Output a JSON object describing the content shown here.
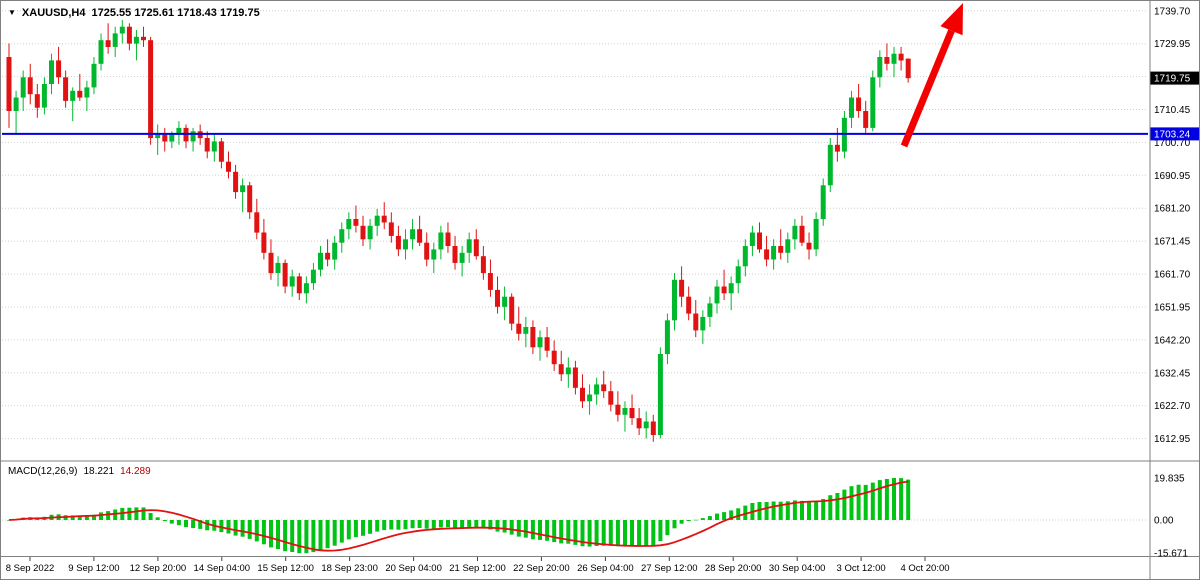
{
  "window": {
    "symbol_label": "XAUUSD,H4",
    "ohlc": "1725.55 1725.61 1718.43 1719.75",
    "dropdown_icon": "▼"
  },
  "colors": {
    "bull": "#00B82E",
    "bear": "#E01212",
    "grid": "#CFCFCF",
    "hline": "#0000E0",
    "arrow": "#F40000",
    "macd_hist": "#00C314",
    "macd_signal": "#E01212",
    "price_tag_bg": "#000000",
    "tag_text": "#FFFFFF",
    "frame": "#808080"
  },
  "price_axis": {
    "labels": [
      "1739.70",
      "1729.95",
      "1710.45",
      "1700.70",
      "1690.95",
      "1681.20",
      "1671.45",
      "1661.70",
      "1651.95",
      "1642.20",
      "1632.45",
      "1622.70",
      "1612.95"
    ],
    "current_price_tag": "1719.75",
    "line_tag": "1703.24"
  },
  "macd_panel": {
    "label": "MACD(12,26,9)",
    "value_main": "18.221",
    "value_signal": "14.289",
    "axis_labels": [
      "19.835",
      "0.00",
      "-15.671"
    ]
  },
  "chart_data": {
    "type": "candlestick",
    "symbol": "XAUUSD",
    "timeframe": "H4",
    "title": "XAUUSD,H4",
    "last_ohlc": {
      "open": 1725.55,
      "high": 1725.61,
      "low": 1718.43,
      "close": 1719.75
    },
    "ylim": [
      1606.5,
      1742.9
    ],
    "y_gridlines": [
      1739.7,
      1729.95,
      1720.2,
      1710.45,
      1700.7,
      1690.95,
      1681.2,
      1671.45,
      1661.7,
      1651.95,
      1642.2,
      1632.45,
      1622.7,
      1612.95
    ],
    "x_labels": [
      "8 Sep 2022",
      "9 Sep 12:00",
      "12 Sep 20:00",
      "14 Sep 04:00",
      "15 Sep 12:00",
      "18 Sep 23:00",
      "20 Sep 04:00",
      "21 Sep 12:00",
      "22 Sep 20:00",
      "26 Sep 04:00",
      "27 Sep 12:00",
      "28 Sep 20:00",
      "30 Sep 04:00",
      "3 Oct 12:00",
      "4 Oct 20:00"
    ],
    "indicators": {
      "horizontal_line": {
        "price": 1703.24
      },
      "macd": {
        "fast": 12,
        "slow": 26,
        "signal": 9,
        "last_main": 18.221,
        "last_signal": 14.289,
        "axis_range": [
          19.835,
          0,
          -15.671
        ]
      }
    },
    "candles": [
      [
        1726,
        1730,
        1705,
        1710
      ],
      [
        1710,
        1716,
        1703,
        1714
      ],
      [
        1714,
        1722,
        1710,
        1720
      ],
      [
        1720,
        1724,
        1712,
        1715
      ],
      [
        1715,
        1718,
        1708,
        1711
      ],
      [
        1711,
        1720,
        1709,
        1718
      ],
      [
        1718,
        1727,
        1715,
        1725
      ],
      [
        1725,
        1729,
        1718,
        1720
      ],
      [
        1720,
        1722,
        1711,
        1713
      ],
      [
        1713,
        1717,
        1707,
        1716
      ],
      [
        1716,
        1721,
        1713,
        1714
      ],
      [
        1714,
        1719,
        1710,
        1717
      ],
      [
        1717,
        1726,
        1715,
        1724
      ],
      [
        1724,
        1733,
        1722,
        1731
      ],
      [
        1731,
        1736,
        1727,
        1729
      ],
      [
        1729,
        1735,
        1726,
        1733
      ],
      [
        1733,
        1737,
        1730,
        1735
      ],
      [
        1735,
        1736,
        1728,
        1730
      ],
      [
        1730,
        1734,
        1725,
        1732
      ],
      [
        1732,
        1735,
        1729,
        1731
      ],
      [
        1731,
        1732,
        1700,
        1702
      ],
      [
        1702,
        1706,
        1697,
        1703
      ],
      [
        1703,
        1705,
        1698,
        1701
      ],
      [
        1701,
        1704,
        1699,
        1703
      ],
      [
        1703,
        1707,
        1700,
        1705
      ],
      [
        1705,
        1706,
        1699,
        1701
      ],
      [
        1701,
        1705,
        1698,
        1704
      ],
      [
        1704,
        1706,
        1700,
        1702
      ],
      [
        1702,
        1704,
        1696,
        1698
      ],
      [
        1698,
        1703,
        1695,
        1701
      ],
      [
        1701,
        1702,
        1693,
        1695
      ],
      [
        1695,
        1698,
        1690,
        1692
      ],
      [
        1692,
        1694,
        1684,
        1686
      ],
      [
        1686,
        1690,
        1680,
        1688
      ],
      [
        1688,
        1689,
        1678,
        1680
      ],
      [
        1680,
        1684,
        1672,
        1674
      ],
      [
        1674,
        1678,
        1666,
        1668
      ],
      [
        1668,
        1672,
        1660,
        1662
      ],
      [
        1662,
        1667,
        1658,
        1665
      ],
      [
        1665,
        1666,
        1656,
        1658
      ],
      [
        1658,
        1663,
        1655,
        1661
      ],
      [
        1661,
        1662,
        1654,
        1656
      ],
      [
        1656,
        1661,
        1653,
        1659
      ],
      [
        1659,
        1665,
        1657,
        1663
      ],
      [
        1663,
        1670,
        1661,
        1668
      ],
      [
        1668,
        1672,
        1664,
        1666
      ],
      [
        1666,
        1673,
        1663,
        1671
      ],
      [
        1671,
        1677,
        1668,
        1675
      ],
      [
        1675,
        1680,
        1672,
        1678
      ],
      [
        1678,
        1682,
        1674,
        1676
      ],
      [
        1676,
        1679,
        1670,
        1672
      ],
      [
        1672,
        1678,
        1669,
        1676
      ],
      [
        1676,
        1681,
        1673,
        1679
      ],
      [
        1679,
        1683,
        1675,
        1677
      ],
      [
        1677,
        1680,
        1671,
        1673
      ],
      [
        1673,
        1676,
        1667,
        1669
      ],
      [
        1669,
        1675,
        1666,
        1672
      ],
      [
        1672,
        1678,
        1669,
        1675
      ],
      [
        1675,
        1679,
        1670,
        1671
      ],
      [
        1671,
        1674,
        1664,
        1666
      ],
      [
        1666,
        1671,
        1662,
        1669
      ],
      [
        1669,
        1676,
        1666,
        1674
      ],
      [
        1674,
        1677,
        1668,
        1670
      ],
      [
        1670,
        1673,
        1663,
        1665
      ],
      [
        1665,
        1670,
        1661,
        1668
      ],
      [
        1668,
        1674,
        1665,
        1672
      ],
      [
        1672,
        1675,
        1666,
        1667
      ],
      [
        1667,
        1670,
        1660,
        1662
      ],
      [
        1662,
        1666,
        1655,
        1657
      ],
      [
        1657,
        1661,
        1650,
        1652
      ],
      [
        1652,
        1658,
        1648,
        1655
      ],
      [
        1655,
        1656,
        1645,
        1647
      ],
      [
        1647,
        1652,
        1642,
        1644
      ],
      [
        1644,
        1649,
        1640,
        1646
      ],
      [
        1646,
        1648,
        1638,
        1640
      ],
      [
        1640,
        1645,
        1636,
        1643
      ],
      [
        1643,
        1646,
        1637,
        1639
      ],
      [
        1639,
        1642,
        1633,
        1635
      ],
      [
        1635,
        1639,
        1630,
        1632
      ],
      [
        1632,
        1637,
        1628,
        1634
      ],
      [
        1634,
        1636,
        1626,
        1628
      ],
      [
        1628,
        1632,
        1622,
        1624
      ],
      [
        1624,
        1629,
        1620,
        1626
      ],
      [
        1626,
        1631,
        1623,
        1629
      ],
      [
        1629,
        1633,
        1625,
        1627
      ],
      [
        1627,
        1630,
        1621,
        1623
      ],
      [
        1623,
        1627,
        1618,
        1620
      ],
      [
        1620,
        1624,
        1615,
        1622
      ],
      [
        1622,
        1626,
        1617,
        1619
      ],
      [
        1619,
        1622,
        1614,
        1616
      ],
      [
        1616,
        1621,
        1613,
        1618
      ],
      [
        1618,
        1620,
        1612,
        1614
      ],
      [
        1614,
        1640,
        1613,
        1638
      ],
      [
        1638,
        1650,
        1635,
        1648
      ],
      [
        1648,
        1662,
        1645,
        1660
      ],
      [
        1660,
        1664,
        1652,
        1655
      ],
      [
        1655,
        1658,
        1648,
        1650
      ],
      [
        1650,
        1654,
        1643,
        1645
      ],
      [
        1645,
        1651,
        1641,
        1649
      ],
      [
        1649,
        1655,
        1646,
        1653
      ],
      [
        1653,
        1660,
        1650,
        1658
      ],
      [
        1658,
        1663,
        1654,
        1656
      ],
      [
        1656,
        1661,
        1651,
        1659
      ],
      [
        1659,
        1666,
        1656,
        1664
      ],
      [
        1664,
        1672,
        1661,
        1670
      ],
      [
        1670,
        1676,
        1667,
        1674
      ],
      [
        1674,
        1677,
        1668,
        1669
      ],
      [
        1669,
        1673,
        1664,
        1666
      ],
      [
        1666,
        1672,
        1663,
        1670
      ],
      [
        1670,
        1675,
        1666,
        1668
      ],
      [
        1668,
        1674,
        1665,
        1672
      ],
      [
        1672,
        1678,
        1669,
        1676
      ],
      [
        1676,
        1679,
        1670,
        1671
      ],
      [
        1671,
        1674,
        1666,
        1669
      ],
      [
        1669,
        1680,
        1667,
        1678
      ],
      [
        1678,
        1690,
        1676,
        1688
      ],
      [
        1688,
        1702,
        1686,
        1700
      ],
      [
        1700,
        1705,
        1695,
        1698
      ],
      [
        1698,
        1710,
        1696,
        1708
      ],
      [
        1708,
        1716,
        1705,
        1714
      ],
      [
        1714,
        1718,
        1708,
        1710
      ],
      [
        1710,
        1713,
        1703,
        1705
      ],
      [
        1705,
        1722,
        1704,
        1720
      ],
      [
        1720,
        1728,
        1717,
        1726
      ],
      [
        1726,
        1730,
        1722,
        1724
      ],
      [
        1724,
        1729,
        1720,
        1727
      ],
      [
        1727,
        1729,
        1722,
        1725
      ],
      [
        1725.55,
        1725.61,
        1718.43,
        1719.75
      ]
    ]
  }
}
